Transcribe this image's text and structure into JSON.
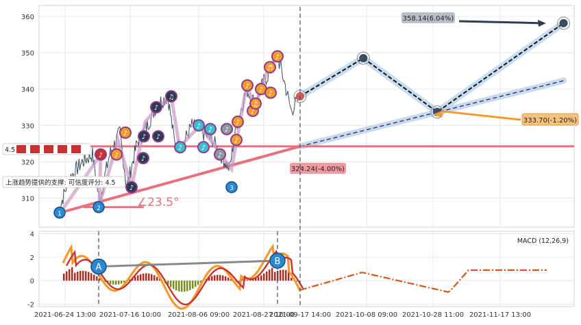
{
  "chart_data": {
    "type": "line",
    "price_panel": {
      "y_ticks": [
        310,
        320,
        330,
        340,
        350,
        360
      ],
      "ylim": [
        302,
        363
      ],
      "current_price": 338.0,
      "support_level": 324.24,
      "support_label": "324.24(-4.00%)",
      "support_angle_label": "∠23.5°",
      "support_tooltip": "上涨趋势提供的支撑: 可信度评分: 4.5",
      "rating_label": "4.5",
      "forecast_high_label": "358.14(6.04%)",
      "forecast_low_label": "333.70(-1.20%)",
      "forecast_points": [
        {
          "x": 0,
          "y": 338.0
        },
        {
          "x": 0.18,
          "y": 348.5
        },
        {
          "x": 0.39,
          "y": 333.7
        },
        {
          "x": 0.75,
          "y": 358.14
        }
      ],
      "trend_channel_upper": [
        {
          "x": 0,
          "y": 324.24
        },
        {
          "x": 0.75,
          "y": 342.3
        }
      ],
      "wave_markers": [
        {
          "label": "1",
          "t": 0.08,
          "y": 306
        },
        {
          "label": "2",
          "t": 0.135,
          "y": 307.5
        },
        {
          "label": "3",
          "t": 0.315,
          "y": 313
        }
      ]
    },
    "macd_panel": {
      "title": "MACD (12,26,9)",
      "y_ticks": [
        4,
        2,
        0,
        -2
      ],
      "ylim": [
        -2.2,
        4.2
      ],
      "divergence_markers": [
        {
          "label": "A",
          "value": 1.2
        },
        {
          "label": "B",
          "value": 1.7
        }
      ]
    },
    "x_tick_labels": [
      "2021-06-24 13:00",
      "2021-07-16 10:00",
      "2021-08-06 09:00",
      "2021-08-27 10:00",
      "2021-09-17 14:00",
      "2021-10-08 09:00",
      "2021-10-28 11:00",
      "2021-11-17 13:00"
    ],
    "grid": true
  },
  "colors": {
    "support": "#e8707c",
    "forecast": "#2f3e4e",
    "channel": "#b9d3ea",
    "macd_orange": "#f39a2b",
    "macd_red": "#c8312f",
    "hist_pos": "#a33226",
    "hist_neg": "#7a8c28",
    "price": "#3a4a5a"
  }
}
